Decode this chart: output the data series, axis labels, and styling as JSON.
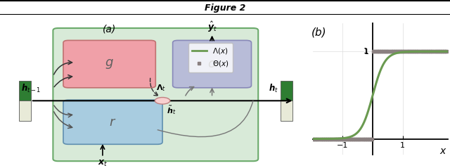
{
  "fig_width": 6.4,
  "fig_height": 2.39,
  "dpi": 100,
  "title": "Figure 2",
  "bg_color": "#ffffff",
  "outer_box_color": "#d8ead8",
  "outer_box_edge": "#6aaa6a",
  "g_box_color": "#f0a0a8",
  "g_box_edge": "#c07070",
  "o_box_color": "#b8bcd8",
  "o_box_edge": "#8888b8",
  "r_box_color": "#a8cce0",
  "r_box_edge": "#6090b0",
  "h_bar_green": "#2e7d32",
  "h_bar_light": "#e8ead8",
  "sigmoid_color": "#6a9a50",
  "step_color": "#8a8080",
  "plot_b_label": "(b)",
  "plot_a_label": "(a)"
}
